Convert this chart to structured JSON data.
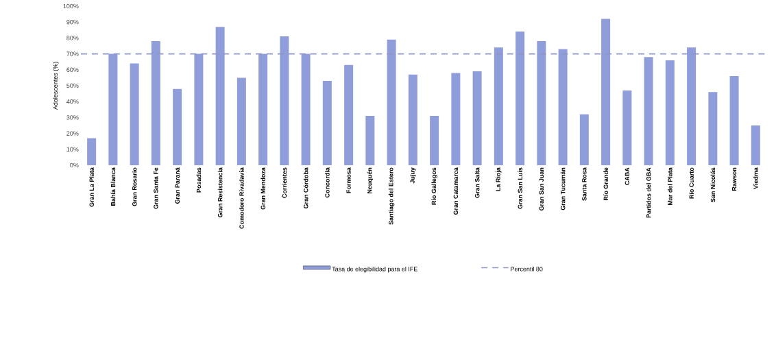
{
  "chart_data": {
    "type": "bar",
    "ylabel": "Adolescentes (%)",
    "categories": [
      "Gran La Plata",
      "Bahía Blanca",
      "Gran Rosario",
      "Gran Santa Fe",
      "Gran Paraná",
      "Posadas",
      "Gran Resistencia",
      "Comodoro Rivadavia",
      "Gran Mendoza",
      "Corrientes",
      "Gran Córdoba",
      "Concordia",
      "Formosa",
      "Neuquén",
      "Santiago del Estero",
      "Jujuy",
      "Río Gallegos",
      "Gran Catamarca",
      "Gran Salta",
      "La Rioja",
      "Gran San Luis",
      "Gran San Juan",
      "Gran Tucumán",
      "Santa Rosa",
      "Río Grande",
      "CABA",
      "Partidos del GBA",
      "Mar del Plata",
      "Río Cuarto",
      "San Nicolás",
      "Rawson",
      "Viedma"
    ],
    "series": [
      {
        "name": "Tasa de elegibilidad para el IFE",
        "color": "#8f9ddb",
        "values": [
          17,
          70,
          64,
          78,
          48,
          70,
          87,
          55,
          70,
          81,
          70,
          53,
          63,
          31,
          79,
          57,
          31,
          58,
          59,
          74,
          84,
          78,
          73,
          32,
          92,
          47,
          68,
          66,
          74,
          46,
          56,
          25
        ]
      }
    ],
    "ylim": [
      0,
      100
    ],
    "yticks": [
      {
        "value": 0,
        "label": "0%"
      },
      {
        "value": 10,
        "label": "10%"
      },
      {
        "value": 20,
        "label": "20%"
      },
      {
        "value": 30,
        "label": "30%"
      },
      {
        "value": 40,
        "label": "40%"
      },
      {
        "value": 50,
        "label": "50%"
      },
      {
        "value": 60,
        "label": "60%"
      },
      {
        "value": 70,
        "label": "70%"
      },
      {
        "value": 80,
        "label": "80%"
      },
      {
        "value": 90,
        "label": "90%"
      },
      {
        "value": 100,
        "label": "100%"
      }
    ],
    "ref_lines": [
      {
        "axis": "y",
        "value": 70,
        "label": "Percentil 80",
        "color": "#8f96c4",
        "line_style": "dashed"
      }
    ],
    "grid": false,
    "legend": "bottom"
  }
}
